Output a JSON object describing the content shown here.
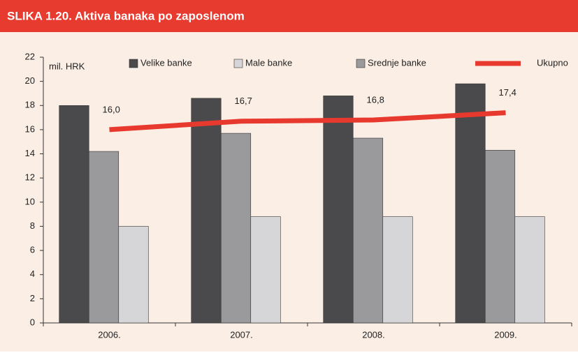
{
  "chart_data": {
    "type": "bar_line",
    "title": "SLIKA 1.20. Aktiva banaka po zaposlenom",
    "y_label": "mil. HRK",
    "categories": [
      "2006.",
      "2007.",
      "2008.",
      "2009."
    ],
    "series": [
      {
        "name": "Velike banke",
        "color": "#4a4a4c",
        "values": [
          18.0,
          18.6,
          18.8,
          19.8
        ]
      },
      {
        "name": "Male banke",
        "color": "#d6d6d8",
        "values": [
          8.0,
          8.8,
          8.8,
          8.8
        ]
      },
      {
        "name": "Srednje banke",
        "color": "#9a9a9c",
        "values": [
          14.2,
          15.7,
          15.3,
          14.3
        ]
      },
      {
        "name": "Ukupno",
        "type": "line",
        "color": "#e8392e",
        "values": [
          16.0,
          16.7,
          16.8,
          17.4
        ],
        "value_labels": [
          "16,0",
          "16,7",
          "16,8",
          "17,4"
        ]
      }
    ],
    "bar_order": [
      0,
      2,
      1
    ],
    "ylim": [
      0,
      22
    ],
    "yticks": [
      0,
      2,
      4,
      6,
      8,
      10,
      12,
      14,
      16,
      18,
      20,
      22
    ]
  }
}
